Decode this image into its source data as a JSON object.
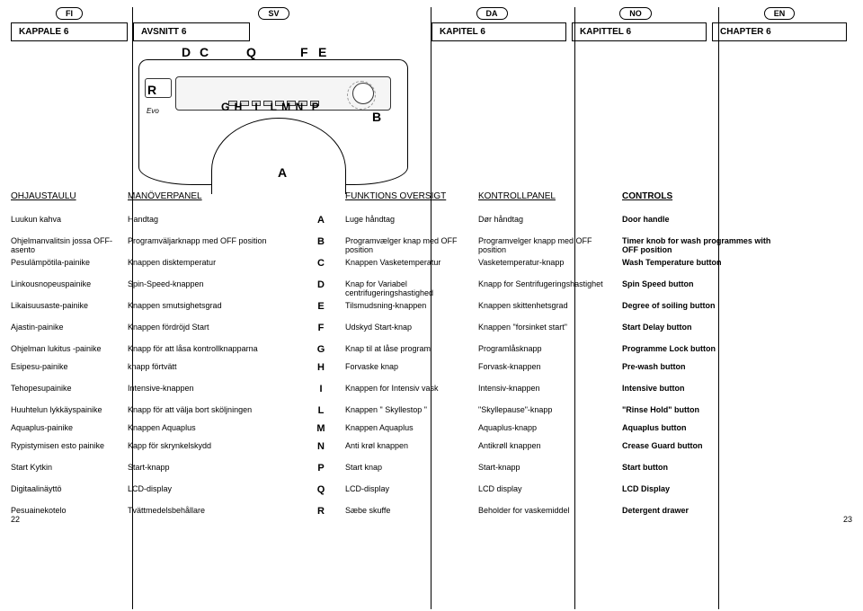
{
  "langs": [
    "FI",
    "SV",
    "DA",
    "NO",
    "EN"
  ],
  "chapters": [
    "KAPPALE 6",
    "AVSNITT 6",
    "KAPITEL 6",
    "KAPITTEL 6",
    "CHAPTER 6"
  ],
  "diagram": {
    "top_letters": {
      "D": "D",
      "C": "C",
      "Q": "Q",
      "F": "F",
      "E": "E"
    },
    "left_R": "R",
    "mid_letters": "G H   I   L M N  P",
    "B": "B",
    "A": "A",
    "logo": "Evo"
  },
  "headers": [
    "OHJAUSTAULU",
    "MANÖVERPANEL",
    "",
    "FUNKTIONS OVERSIGT",
    "KONTROLLPANEL",
    "CONTROLS"
  ],
  "rows": [
    {
      "fi": "Luukun kahva",
      "sv": "Handtag",
      "L": "A",
      "da": "Luge håndtag",
      "no": "Dør håndtag",
      "en": "Door handle"
    },
    {
      "fi": "Ohjelmanvalitsin jossa OFF-asento",
      "sv": "Programväljarknapp med OFF position",
      "L": "B",
      "da": "Programvælger knap med OFF position",
      "no": "Programvelger knapp med OFF position",
      "en": "Timer knob for wash programmes with OFF position"
    },
    {
      "fi": "Pesulämpötila-painike",
      "sv": "Knappen disktemperatur",
      "L": "C",
      "da": "Knappen Vasketemperatur",
      "no": "Vasketemperatur-knapp",
      "en": "Wash Temperature button"
    },
    {
      "fi": "Linkousnopeuspainike",
      "sv": "Spin-Speed-knappen",
      "L": "D",
      "da": "Knap for Variabel centrifugeringshastighed",
      "no": "Knapp for Sentrifugeringshastighet",
      "en": "Spin Speed button"
    },
    {
      "fi": "Likaisuusaste-painike",
      "sv": "Knappen smutsighetsgrad",
      "L": "E",
      "da": "Tilsmudsning-knappen",
      "no": "Knappen skittenhetsgrad",
      "en": "Degree of soiling button"
    },
    {
      "fi": "Ajastin-painike",
      "sv": "Knappen fördröjd Start",
      "L": "F",
      "da": "Udskyd Start-knap",
      "no": "Knappen \"forsinket start\"",
      "en": "Start Delay button"
    },
    {
      "fi": "Ohjelman lukitus -painike",
      "sv": "Knapp för att låsa kontrollknapparna",
      "L": "G",
      "da": "Knap til at låse program",
      "no": "Programlåsknapp",
      "en": "Programme Lock button"
    },
    {
      "fi": "Esipesu-painike",
      "sv": "knapp förtvätt",
      "L": "H",
      "da": "Forvaske knap",
      "no": "Forvask-knappen",
      "en": "Pre-wash button"
    },
    {
      "fi": "Tehopesupainike",
      "sv": "Intensive-knappen",
      "L": "I",
      "da": "Knappen for Intensiv vask",
      "no": "Intensiv-knappen",
      "en": "Intensive button"
    },
    {
      "fi": "Huuhtelun lykkäyspainike",
      "sv": "Knapp för att välja bort sköljningen",
      "L": "L",
      "da": "Knappen \" Skyllestop \"",
      "no": "\"Skyllepause\"-knapp",
      "en": "\"Rinse Hold\" button"
    },
    {
      "fi": "Aquaplus-painike",
      "sv": "Knappen Aquaplus",
      "L": "M",
      "da": "Knappen Aquaplus",
      "no": "Aquaplus-knapp",
      "en": "Aquaplus button"
    },
    {
      "fi": "Rypistymisen esto painike",
      "sv": "Kapp för skrynkelskydd",
      "L": "N",
      "da": "Anti krøl knappen",
      "no": "Antikrøll knappen",
      "en": "Crease Guard button"
    },
    {
      "fi": "Start Kytkin",
      "sv": "Start-knapp",
      "L": "P",
      "da": "Start knap",
      "no": "Start-knapp",
      "en": "Start button"
    },
    {
      "fi": "Digitaalinäyttö",
      "sv": "LCD-display",
      "L": "Q",
      "da": "LCD-display",
      "no": "LCD display",
      "en": "LCD Display"
    },
    {
      "fi": "Pesuainekotelo",
      "sv": "Tvättmedelsbehållare",
      "L": "R",
      "da": "Sæbe skuffe",
      "no": "Beholder for vaskemiddel",
      "en": "Detergent drawer"
    }
  ],
  "page_left": "22",
  "page_right": "23",
  "grouped_spacers": [
    1,
    3,
    5,
    6,
    8,
    9,
    12,
    13,
    14
  ]
}
